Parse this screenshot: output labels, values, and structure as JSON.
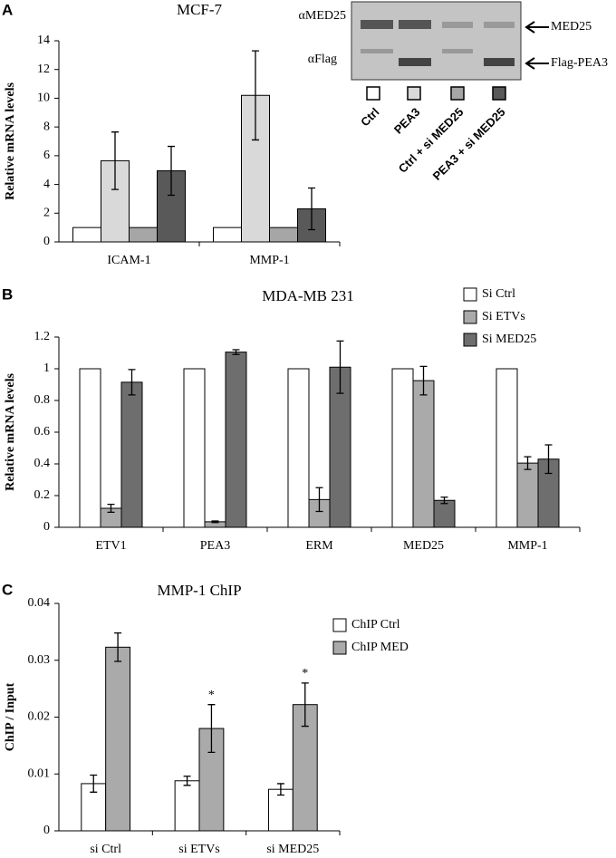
{
  "chart_data": [
    {
      "type": "bar",
      "panel": "A",
      "title": "MCF-7",
      "y_label": "Relative mRNA levels",
      "categories": [
        "ICAM-1",
        "MMP-1"
      ],
      "series": [
        {
          "name": "Ctrl",
          "color": "#ffffff",
          "values": [
            1,
            1
          ],
          "errors": [
            null,
            null
          ]
        },
        {
          "name": "PEA3",
          "color": "#d9d9d9",
          "values": [
            5.65,
            10.2
          ],
          "errors": [
            2.0,
            3.1
          ]
        },
        {
          "name": "Ctrl + si MED25",
          "color": "#a6a6a6",
          "values": [
            1,
            1
          ],
          "errors": [
            null,
            null
          ]
        },
        {
          "name": "PEA3 + si MED25",
          "color": "#595959",
          "values": [
            4.95,
            2.3
          ],
          "errors": [
            1.7,
            1.45
          ]
        }
      ],
      "ylim": [
        0,
        14
      ],
      "yticks": [
        0,
        2,
        4,
        6,
        8,
        10,
        12,
        14
      ]
    },
    {
      "type": "bar",
      "panel": "B",
      "title": "MDA-MB 231",
      "y_label": "Relative mRNA levels",
      "categories": [
        "ETV1",
        "PEA3",
        "ERM",
        "MED25",
        "MMP-1"
      ],
      "series": [
        {
          "name": "Si Ctrl",
          "color": "#ffffff",
          "values": [
            1,
            1,
            1,
            1,
            1
          ],
          "errors": [
            null,
            null,
            null,
            null,
            null
          ]
        },
        {
          "name": "Si ETVs",
          "color": "#aaaaaa",
          "values": [
            0.12,
            0.035,
            0.175,
            0.925,
            0.405
          ],
          "errors": [
            0.025,
            0.005,
            0.075,
            0.09,
            0.04
          ]
        },
        {
          "name": "Si MED25",
          "color": "#6e6e6e",
          "values": [
            0.915,
            1.105,
            1.01,
            0.17,
            0.43
          ],
          "errors": [
            0.08,
            0.015,
            0.165,
            0.02,
            0.09
          ]
        }
      ],
      "ylim": [
        0,
        1.2
      ],
      "yticks": [
        0,
        0.2,
        0.4,
        0.6,
        0.8,
        1,
        1.2
      ]
    },
    {
      "type": "bar",
      "panel": "C",
      "title": "MMP-1 ChIP",
      "y_label": "ChIP / Input",
      "categories": [
        "si Ctrl",
        "si ETVs",
        "si MED25"
      ],
      "series": [
        {
          "name": "ChIP Ctrl",
          "color": "#ffffff",
          "values": [
            0.0083,
            0.0088,
            0.0073
          ],
          "errors": [
            0.0015,
            0.0008,
            0.001
          ]
        },
        {
          "name": "ChIP MED",
          "color": "#aaaaaa",
          "values": [
            0.0323,
            0.018,
            0.0222
          ],
          "errors": [
            0.0025,
            0.0042,
            0.0038
          ]
        }
      ],
      "annotations": [
        {
          "text": "*",
          "category": "si ETVs",
          "series": "ChIP MED"
        },
        {
          "text": "*",
          "category": "si MED25",
          "series": "ChIP MED"
        }
      ],
      "ylim": [
        0,
        0.04
      ],
      "yticks": [
        0,
        0.01,
        0.02,
        0.03,
        0.04
      ]
    }
  ],
  "blot": {
    "row_labels": [
      "αMED25",
      "αFlag"
    ],
    "band_labels": [
      "MED25",
      "Flag-PEA3"
    ]
  }
}
